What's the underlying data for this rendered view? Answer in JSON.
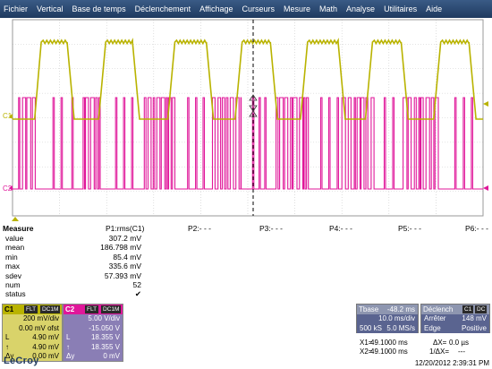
{
  "menu": [
    "Fichier",
    "Vertical",
    "Base de temps",
    "Déclenchement",
    "Affichage",
    "Curseurs",
    "Mesure",
    "Math",
    "Analyse",
    "Utilitaires",
    "Aide"
  ],
  "scope": {
    "c1_label": "C1",
    "c2_label": "C2",
    "colors": {
      "c1": "#b9b300",
      "c2": "#e0179a",
      "grid": "#c9c9c9",
      "cursor": "#000000"
    },
    "c1_pulses": [
      [
        0.047,
        0.061,
        0.116,
        0.131
      ],
      [
        0.183,
        0.198,
        0.255,
        0.27
      ],
      [
        0.33,
        0.345,
        0.412,
        0.427
      ],
      [
        0.473,
        0.488,
        0.548,
        0.563
      ],
      [
        0.612,
        0.627,
        0.692,
        0.707
      ],
      [
        0.75,
        0.765,
        0.826,
        0.841
      ],
      [
        0.895,
        0.91,
        0.97,
        0.985
      ]
    ],
    "c2_bursts": [
      [
        0.013,
        0.05
      ],
      [
        0.15,
        0.192
      ],
      [
        0.28,
        0.345
      ],
      [
        0.425,
        0.486
      ],
      [
        0.56,
        0.63
      ],
      [
        0.7,
        0.77
      ],
      [
        0.83,
        0.905
      ]
    ],
    "c2_sparse": [
      0.086,
      0.103,
      0.126,
      0.219,
      0.236,
      0.253,
      0.372,
      0.389,
      0.405,
      0.51,
      0.524,
      0.536,
      0.655,
      0.672,
      0.69,
      0.79,
      0.808,
      0.94,
      0.958,
      0.975
    ]
  },
  "measure": {
    "title": "Measure",
    "params": [
      "P1:rms(C1)",
      "P2:- - -",
      "P3:- - -",
      "P4:- - -",
      "P5:- - -",
      "P6:- - -"
    ],
    "rows": [
      {
        "label": "value",
        "value": "307.2 mV"
      },
      {
        "label": "mean",
        "value": "186.798 mV"
      },
      {
        "label": "min",
        "value": "85.4 mV"
      },
      {
        "label": "max",
        "value": "335.6 mV"
      },
      {
        "label": "sdev",
        "value": "57.393 mV"
      },
      {
        "label": "num",
        "value": "52"
      }
    ],
    "status_label": "status",
    "status_value": "✔"
  },
  "c1": {
    "name": "C1",
    "tag1": "FLT",
    "tag2": "DC1M",
    "vdiv": "200 mV/div",
    "ofst": "0.00 mV ofst",
    "l1_sym": "L",
    "l1": "4.90 mV",
    "l2_sym": "↑",
    "l2": "4.90 mV",
    "l3_sym": "Δy",
    "l3": "0.00 mV"
  },
  "c2": {
    "name": "C2",
    "tag1": "FLT",
    "tag2": "DC1M",
    "vdiv": "5.00 V/div",
    "ofst": "-15.050 V",
    "l1_sym": "L",
    "l1": "18.355 V",
    "l2_sym": "↑",
    "l2": "18.355 V",
    "l3_sym": "Δy",
    "l3": "0 mV"
  },
  "tbase": {
    "label": "Tbase",
    "delay": "-48.2 ms",
    "tdiv": "10.0 ms/div",
    "samples": "500 kS",
    "rate": "5.0 MS/s"
  },
  "trigger": {
    "label": "Déclench",
    "tag": "C1",
    "tag2": "DC",
    "mode": "Arrêter",
    "level": "148 mV",
    "type": "Edge",
    "slope": "Positive"
  },
  "cursors": {
    "x1": "X1=",
    "x1v": "49.1000 ms",
    "dx": "ΔX=",
    "dxv": "0.0 µs",
    "x2": "X2=",
    "x2v": "49.1000 ms",
    "inv": "1/ΔX=",
    "invv": "---"
  },
  "logo": "LeCroy",
  "datetime": "12/20/2012 2:39:31 PM"
}
